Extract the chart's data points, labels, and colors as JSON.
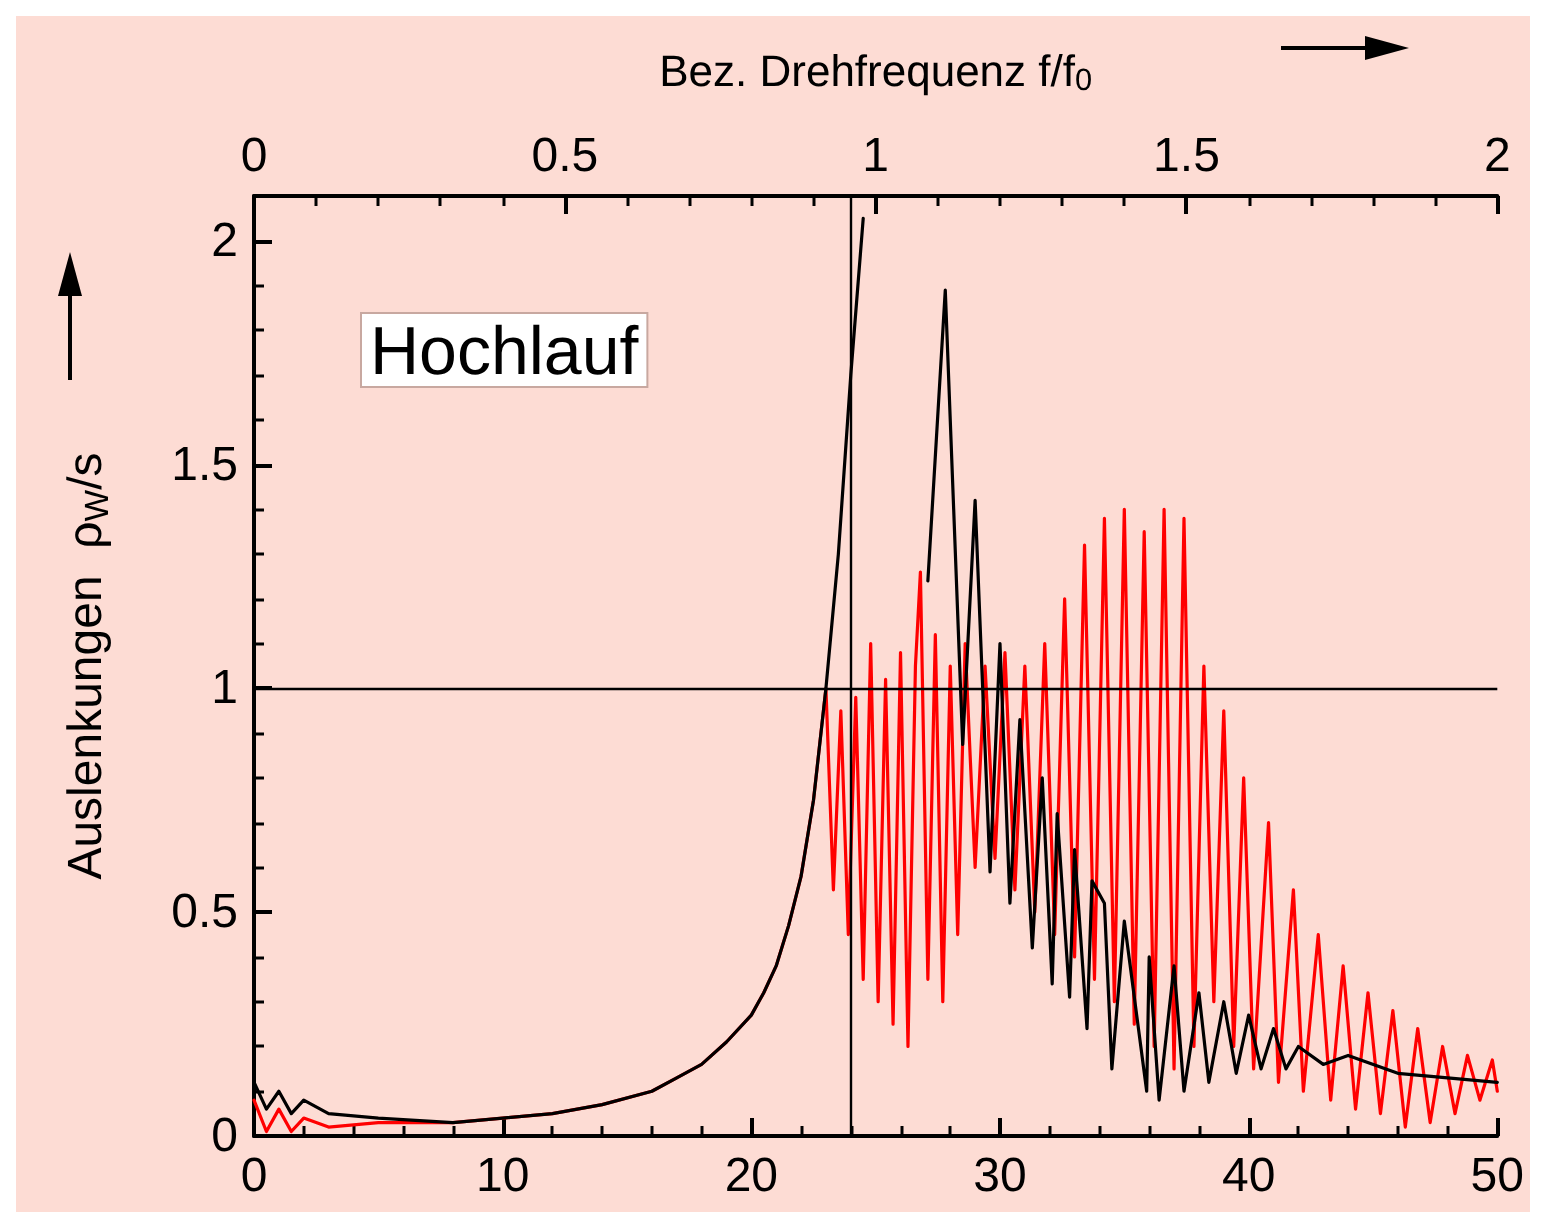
{
  "chart_data": {
    "type": "line",
    "x2label": "Bez. Drehfrequenz f/f$_{0}$",
    "ylabel": "Auslenkungen  ρ$_{W}$/s",
    "annotations": [
      "Hochlauf"
    ],
    "xlim": [
      0,
      50
    ],
    "xticks": [
      0,
      10,
      20,
      30,
      40,
      50
    ],
    "x2lim": [
      0,
      2
    ],
    "x2ticks": [
      0,
      0.5,
      1,
      1.5,
      2
    ],
    "ylim": [
      0,
      2.1
    ],
    "yticks": [
      0,
      0.5,
      1,
      1.5,
      2
    ],
    "grid": false,
    "marker": "none",
    "line_style": "solid",
    "ref_lines": [
      {
        "axis": "y",
        "value": 1,
        "color": "#000000"
      },
      {
        "axis": "x",
        "value": 24,
        "color": "#000000"
      }
    ],
    "series": [
      {
        "color": "#ff0000",
        "x": [
          0,
          0.5,
          1,
          1.5,
          2,
          3,
          5,
          8,
          10,
          12,
          14,
          16,
          17,
          18,
          19,
          20,
          20.5,
          21,
          21.5,
          22,
          22.5,
          23,
          23.3,
          23.6,
          23.9,
          24.2,
          24.5,
          24.8,
          25.1,
          25.4,
          25.7,
          26,
          26.3,
          26.6,
          26.8,
          27.1,
          27.4,
          27.7,
          28,
          28.3,
          28.6,
          29,
          29.4,
          29.8,
          30.2,
          30.6,
          31,
          31.4,
          31.8,
          32.2,
          32.6,
          33,
          33.4,
          33.8,
          34.2,
          34.6,
          35,
          35.4,
          35.8,
          36.2,
          36.6,
          37,
          37.4,
          37.8,
          38.2,
          38.6,
          39,
          39.4,
          39.8,
          40.2,
          40.8,
          41.2,
          41.8,
          42.2,
          42.8,
          43.3,
          43.8,
          44.3,
          44.8,
          45.3,
          45.8,
          46.3,
          46.8,
          47.3,
          47.8,
          48.3,
          48.8,
          49.3,
          49.8,
          50
        ],
        "values": [
          0.08,
          0.01,
          0.06,
          0.01,
          0.04,
          0.02,
          0.03,
          0.03,
          0.04,
          0.05,
          0.07,
          0.1,
          0.13,
          0.16,
          0.21,
          0.27,
          0.32,
          0.38,
          0.47,
          0.58,
          0.75,
          1.0,
          0.55,
          0.95,
          0.45,
          0.98,
          0.35,
          1.1,
          0.3,
          1.02,
          0.25,
          1.08,
          0.2,
          1.05,
          1.26,
          0.35,
          1.12,
          0.3,
          1.05,
          0.45,
          1.1,
          0.6,
          1.05,
          0.62,
          1.08,
          0.55,
          1.05,
          0.5,
          1.1,
          0.45,
          1.2,
          0.4,
          1.32,
          0.35,
          1.38,
          0.3,
          1.4,
          0.25,
          1.35,
          0.2,
          1.4,
          0.15,
          1.38,
          0.2,
          1.05,
          0.3,
          0.95,
          0.2,
          0.8,
          0.15,
          0.7,
          0.12,
          0.55,
          0.1,
          0.45,
          0.08,
          0.38,
          0.06,
          0.32,
          0.05,
          0.28,
          0.02,
          0.24,
          0.03,
          0.2,
          0.05,
          0.18,
          0.08,
          0.17,
          0.1
        ]
      },
      {
        "color": "#000000",
        "x": [
          0,
          0.5,
          1,
          1.5,
          2,
          3,
          5,
          8,
          10,
          12,
          14,
          16,
          17,
          18,
          19,
          20,
          20.5,
          21,
          21.5,
          22,
          22.5,
          23,
          23.5,
          24,
          24.5,
          24.6,
          26.6,
          27.1,
          27.8,
          28.5,
          29,
          29.6,
          30,
          30.4,
          30.8,
          31.3,
          31.7,
          32.1,
          32.3,
          32.8,
          33,
          33.5,
          33.7,
          34.2,
          34.5,
          35,
          35.9,
          36,
          36.4,
          37,
          37.4,
          38,
          38.4,
          39,
          39.5,
          40,
          40.5,
          41,
          41.5,
          42,
          43,
          44,
          46,
          48,
          50
        ],
        "values": [
          0.12,
          0.06,
          0.1,
          0.05,
          0.08,
          0.05,
          0.04,
          0.03,
          0.04,
          0.05,
          0.07,
          0.1,
          0.13,
          0.16,
          0.21,
          0.27,
          0.32,
          0.38,
          0.47,
          0.58,
          0.75,
          1.0,
          1.3,
          1.7,
          2.05,
          null,
          null,
          1.24,
          1.89,
          0.875,
          1.42,
          0.59,
          1.1,
          0.52,
          0.93,
          0.42,
          0.8,
          0.34,
          0.72,
          0.31,
          0.64,
          0.24,
          0.57,
          0.52,
          0.15,
          0.48,
          0.1,
          0.4,
          0.08,
          0.38,
          0.1,
          0.32,
          0.12,
          0.3,
          0.14,
          0.27,
          0.15,
          0.24,
          0.15,
          0.2,
          0.16,
          0.18,
          0.14,
          0.13,
          0.12
        ]
      }
    ]
  }
}
